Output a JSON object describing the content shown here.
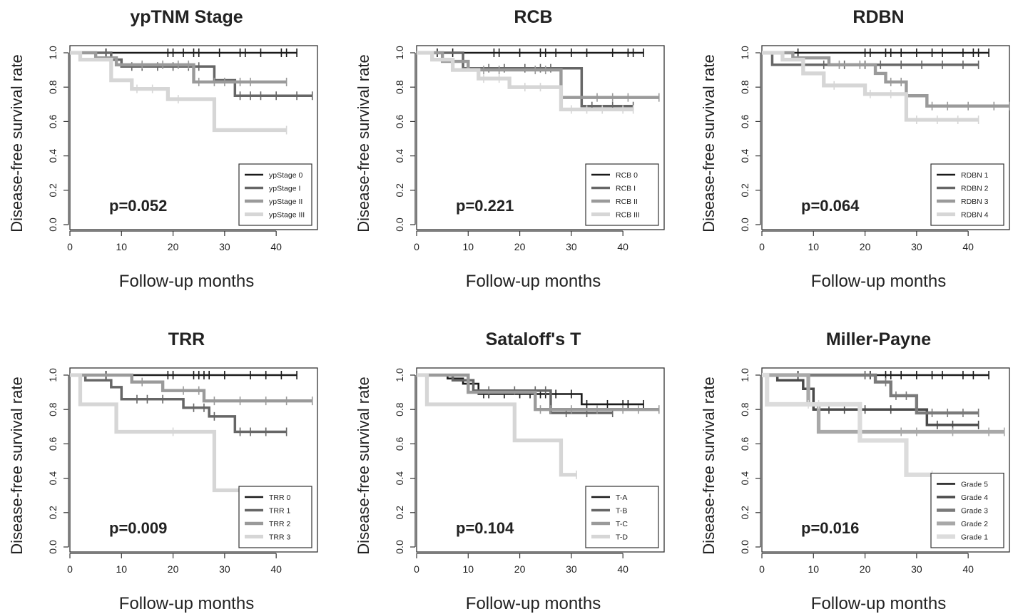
{
  "chart_data": [
    {
      "type": "line",
      "title": "ypTNM Stage",
      "xlabel": "Follow-up months",
      "ylabel": "Disease-free survival rate",
      "xlim": [
        0,
        48
      ],
      "ylim": [
        0,
        1.0
      ],
      "xticks": [
        "0",
        "10",
        "20",
        "30",
        "40"
      ],
      "yticks": [
        "0.0",
        "0.2",
        "0.4",
        "0.6",
        "0.8",
        "1.0"
      ],
      "pvalue": "p=0.052",
      "legend_position": "bottom-right",
      "series": [
        {
          "name": "ypStage 0",
          "color": "#1a1a1a",
          "x": [
            0,
            44
          ],
          "y": [
            1.0,
            1.0
          ],
          "censored": [
            7,
            19,
            20,
            22,
            24,
            25,
            29,
            33,
            34,
            37,
            41,
            42,
            44
          ]
        },
        {
          "name": "ypStage I",
          "color": "#666666",
          "x": [
            0,
            8,
            10,
            28,
            32,
            47
          ],
          "y": [
            1.0,
            0.96,
            0.92,
            0.84,
            0.75,
            0.75
          ],
          "censored": [
            12,
            14,
            17,
            20,
            23,
            25,
            33,
            35,
            37,
            40,
            44,
            47
          ]
        },
        {
          "name": "ypStage II",
          "color": "#9a9a9a",
          "x": [
            0,
            5,
            9,
            24,
            42
          ],
          "y": [
            1.0,
            0.97,
            0.93,
            0.83,
            0.83
          ],
          "censored": [
            14,
            18,
            21,
            23,
            25,
            28,
            30,
            33,
            35,
            42
          ]
        },
        {
          "name": "ypStage III",
          "color": "#d6d6d6",
          "x": [
            0,
            2,
            8,
            12,
            19,
            28,
            42
          ],
          "y": [
            1.0,
            0.96,
            0.84,
            0.79,
            0.73,
            0.55,
            0.55
          ],
          "censored": [
            13,
            16,
            21,
            42
          ]
        }
      ]
    },
    {
      "type": "line",
      "title": "RCB",
      "xlabel": "Follow-up months",
      "ylabel": "Disease-free survival rate",
      "xlim": [
        0,
        48
      ],
      "ylim": [
        0,
        1.0
      ],
      "xticks": [
        "0",
        "10",
        "20",
        "30",
        "40"
      ],
      "yticks": [
        "0.0",
        "0.2",
        "0.4",
        "0.6",
        "0.8",
        "1.0"
      ],
      "pvalue": "p=0.221",
      "legend_position": "bottom-right",
      "series": [
        {
          "name": "RCB 0",
          "color": "#1a1a1a",
          "x": [
            0,
            44
          ],
          "y": [
            1.0,
            1.0
          ],
          "censored": [
            4,
            7,
            15,
            16,
            20,
            24,
            25,
            27,
            30,
            33,
            38,
            41,
            42,
            44
          ]
        },
        {
          "name": "RCB I",
          "color": "#666666",
          "x": [
            0,
            9,
            32,
            42
          ],
          "y": [
            1.0,
            0.91,
            0.69,
            0.69
          ],
          "censored": [
            14,
            17,
            21,
            24,
            26,
            34,
            38,
            42
          ]
        },
        {
          "name": "RCB II",
          "color": "#9a9a9a",
          "x": [
            0,
            5,
            10,
            28,
            47
          ],
          "y": [
            1.0,
            0.95,
            0.9,
            0.74,
            0.74
          ],
          "censored": [
            13,
            16,
            23,
            25,
            35,
            38,
            41,
            47
          ]
        },
        {
          "name": "RCB III",
          "color": "#d6d6d6",
          "x": [
            0,
            3,
            7,
            12,
            18,
            28,
            42
          ],
          "y": [
            1.0,
            0.96,
            0.9,
            0.85,
            0.8,
            0.67,
            0.67
          ],
          "censored": [
            13,
            16,
            21,
            24,
            30,
            33,
            36,
            40,
            42
          ]
        }
      ]
    },
    {
      "type": "line",
      "title": "RDBN",
      "xlabel": "Follow-up months",
      "ylabel": "Disease-free survival rate",
      "xlim": [
        0,
        48
      ],
      "ylim": [
        0,
        1.0
      ],
      "xticks": [
        "0",
        "10",
        "20",
        "30",
        "40"
      ],
      "yticks": [
        "0.0",
        "0.2",
        "0.4",
        "0.6",
        "0.8",
        "1.0"
      ],
      "pvalue": "p=0.064",
      "legend_position": "bottom-right",
      "series": [
        {
          "name": "RDBN 1",
          "color": "#1a1a1a",
          "x": [
            0,
            44
          ],
          "y": [
            1.0,
            1.0
          ],
          "censored": [
            7,
            20,
            21,
            24,
            25,
            27,
            30,
            33,
            35,
            39,
            41,
            42,
            44
          ]
        },
        {
          "name": "RDBN 2",
          "color": "#666666",
          "x": [
            0,
            2,
            42
          ],
          "y": [
            1.0,
            0.93,
            0.93
          ],
          "censored": [
            12,
            16,
            20,
            23,
            27,
            31,
            35,
            39,
            42
          ]
        },
        {
          "name": "RDBN 3",
          "color": "#9a9a9a",
          "x": [
            0,
            6,
            13,
            22,
            24,
            28,
            32,
            48
          ],
          "y": [
            1.0,
            0.97,
            0.93,
            0.88,
            0.83,
            0.75,
            0.69,
            0.69
          ],
          "censored": [
            15,
            19,
            25,
            27,
            33,
            36,
            40,
            45,
            48
          ]
        },
        {
          "name": "RDBN 4",
          "color": "#d6d6d6",
          "x": [
            0,
            4,
            8,
            12,
            20,
            28,
            42
          ],
          "y": [
            1.0,
            0.96,
            0.88,
            0.81,
            0.76,
            0.61,
            0.61
          ],
          "censored": [
            14,
            21,
            25,
            30,
            34,
            38,
            42
          ]
        }
      ]
    },
    {
      "type": "line",
      "title": "TRR",
      "xlabel": "Follow-up months",
      "ylabel": "Disease-free survival rate",
      "xlim": [
        0,
        48
      ],
      "ylim": [
        0,
        1.0
      ],
      "xticks": [
        "0",
        "10",
        "20",
        "30",
        "40"
      ],
      "yticks": [
        "0.0",
        "0.2",
        "0.4",
        "0.6",
        "0.8",
        "1.0"
      ],
      "pvalue": "p=0.009",
      "legend_position": "bottom-right",
      "series": [
        {
          "name": "TRR 0",
          "color": "#1a1a1a",
          "x": [
            0,
            44
          ],
          "y": [
            1.0,
            1.0
          ],
          "censored": [
            7,
            19,
            20,
            24,
            25,
            26,
            27,
            30,
            35,
            38,
            41,
            44
          ]
        },
        {
          "name": "TRR 1",
          "color": "#666666",
          "x": [
            0,
            3,
            8,
            10,
            22,
            27,
            32,
            42
          ],
          "y": [
            1.0,
            0.97,
            0.93,
            0.86,
            0.81,
            0.76,
            0.67,
            0.67
          ],
          "censored": [
            13,
            15,
            18,
            24,
            26,
            28,
            33,
            35,
            38,
            42
          ]
        },
        {
          "name": "TRR 2",
          "color": "#9a9a9a",
          "x": [
            0,
            12,
            18,
            26,
            47
          ],
          "y": [
            1.0,
            0.96,
            0.91,
            0.85,
            0.85
          ],
          "censored": [
            14,
            22,
            25,
            28,
            33,
            38,
            42,
            47
          ]
        },
        {
          "name": "TRR 3",
          "color": "#d6d6d6",
          "x": [
            0,
            2,
            9,
            28,
            42
          ],
          "y": [
            1.0,
            0.83,
            0.67,
            0.33,
            0.33
          ],
          "censored": [
            20,
            42
          ]
        }
      ]
    },
    {
      "type": "line",
      "title": "Sataloff's T",
      "xlabel": "Follow-up months",
      "ylabel": "Disease-free survival rate",
      "xlim": [
        0,
        48
      ],
      "ylim": [
        0,
        1.0
      ],
      "xticks": [
        "0",
        "10",
        "20",
        "30",
        "40"
      ],
      "yticks": [
        "0.0",
        "0.2",
        "0.4",
        "0.6",
        "0.8",
        "1.0"
      ],
      "pvalue": "p=0.104",
      "legend_position": "bottom-right",
      "series": [
        {
          "name": "T-A",
          "color": "#1a1a1a",
          "x": [
            0,
            6,
            9,
            12,
            32,
            44
          ],
          "y": [
            1.0,
            0.98,
            0.95,
            0.89,
            0.83,
            0.83
          ],
          "censored": [
            13,
            14,
            17,
            20,
            22,
            24,
            25,
            27,
            30,
            33,
            37,
            40,
            41,
            44
          ]
        },
        {
          "name": "T-B",
          "color": "#666666",
          "x": [
            0,
            7,
            11,
            26,
            38
          ],
          "y": [
            1.0,
            0.97,
            0.91,
            0.78,
            0.78
          ],
          "censored": [
            14,
            19,
            23,
            25,
            29,
            33,
            38
          ]
        },
        {
          "name": "T-C",
          "color": "#9a9a9a",
          "x": [
            0,
            10,
            23,
            47
          ],
          "y": [
            1.0,
            0.9,
            0.8,
            0.8
          ],
          "censored": [
            24,
            26,
            30,
            35,
            40,
            43,
            47
          ]
        },
        {
          "name": "T-D",
          "color": "#d6d6d6",
          "x": [
            0,
            2,
            19,
            28,
            31
          ],
          "y": [
            1.0,
            0.83,
            0.62,
            0.42,
            0.42
          ],
          "censored": [
            31
          ]
        }
      ]
    },
    {
      "type": "line",
      "title": "Miller-Payne",
      "xlabel": "Follow-up months",
      "ylabel": "Disease-free survival rate",
      "xlim": [
        0,
        48
      ],
      "ylim": [
        0,
        1.0
      ],
      "xticks": [
        "0",
        "10",
        "20",
        "30",
        "40"
      ],
      "yticks": [
        "0.0",
        "0.2",
        "0.4",
        "0.6",
        "0.8",
        "1.0"
      ],
      "pvalue": "p=0.016",
      "legend_position": "bottom-right",
      "series": [
        {
          "name": "Grade 5",
          "color": "#1a1a1a",
          "x": [
            0,
            44
          ],
          "y": [
            1.0,
            1.0
          ],
          "censored": [
            7,
            20,
            21,
            24,
            25,
            27,
            30,
            33,
            35,
            39,
            41,
            44
          ]
        },
        {
          "name": "Grade 4",
          "color": "#4a4a4a",
          "x": [
            0,
            3,
            8,
            10,
            32,
            42
          ],
          "y": [
            1.0,
            0.97,
            0.92,
            0.8,
            0.71,
            0.71
          ],
          "censored": [
            13,
            16,
            20,
            25,
            34,
            37,
            42
          ]
        },
        {
          "name": "Grade 3",
          "color": "#7a7a7a",
          "x": [
            0,
            22,
            25,
            30,
            42
          ],
          "y": [
            1.0,
            0.96,
            0.88,
            0.78,
            0.78
          ],
          "censored": [
            20,
            24,
            26,
            28,
            33,
            36,
            39,
            42
          ]
        },
        {
          "name": "Grade 2",
          "color": "#a8a8a8",
          "x": [
            0,
            9,
            11,
            47
          ],
          "y": [
            1.0,
            0.83,
            0.67,
            0.67
          ],
          "censored": [
            27,
            30,
            37,
            44,
            47
          ]
        },
        {
          "name": "Grade 1",
          "color": "#dcdcdc",
          "x": [
            0,
            1,
            19,
            28,
            33
          ],
          "y": [
            1.0,
            0.83,
            0.62,
            0.42,
            0.42
          ],
          "censored": [
            9,
            11,
            33
          ]
        }
      ]
    }
  ]
}
